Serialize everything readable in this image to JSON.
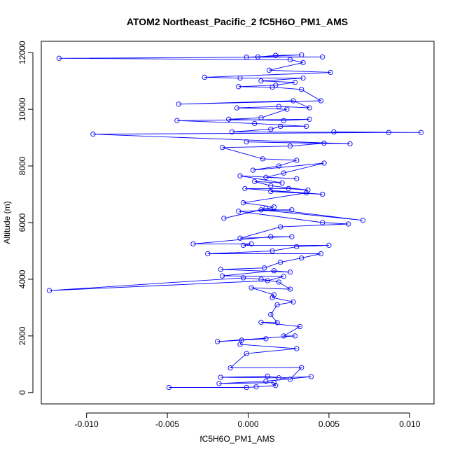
{
  "chart_data": {
    "type": "line",
    "title": "ATOM2 Northeast_Pacific_2 fC5H6O_PM1_AMS",
    "xlabel": "fC5H6O_PM1_AMS",
    "ylabel": "Altitude (m)",
    "xlim": [
      -0.0128,
      0.0115
    ],
    "ylim": [
      -400,
      12400
    ],
    "xticks": [
      -0.01,
      -0.005,
      0.0,
      0.005,
      0.01
    ],
    "xtick_labels": [
      "-0.010",
      "-0.005",
      "0.000",
      "0.005",
      "0.010"
    ],
    "yticks": [
      0,
      2000,
      4000,
      6000,
      8000,
      10000,
      12000
    ],
    "ytick_labels": [
      "0",
      "2000",
      "4000",
      "6000",
      "8000",
      "10000",
      "12000"
    ],
    "grid": false,
    "marker": "open-circle",
    "series_color": "#0000ff",
    "series": [
      {
        "points": [
          [
            -0.0049,
            180
          ],
          [
            -0.0001,
            180
          ],
          [
            0.0005,
            200
          ],
          [
            0.0017,
            250
          ],
          [
            0.0016,
            350
          ],
          [
            -0.0018,
            320
          ],
          [
            0.0011,
            400
          ],
          [
            0.0039,
            560
          ],
          [
            0.0019,
            520
          ],
          [
            -0.0017,
            540
          ],
          [
            0.0012,
            580
          ],
          [
            0.0026,
            470
          ],
          [
            0.0033,
            880
          ],
          [
            -0.0011,
            870
          ],
          [
            -0.0001,
            1380
          ],
          [
            0.003,
            1550
          ],
          [
            -0.0005,
            1700
          ],
          [
            -0.0004,
            1850
          ],
          [
            0.0011,
            1900
          ],
          [
            -0.0019,
            1800
          ],
          [
            0.0029,
            2000
          ],
          [
            0.0022,
            2000
          ],
          [
            0.0032,
            2330
          ],
          [
            0.0008,
            2480
          ],
          [
            0.0018,
            2470
          ],
          [
            0.0014,
            2750
          ],
          [
            0.0018,
            3100
          ],
          [
            0.0028,
            3200
          ],
          [
            0.0015,
            3350
          ],
          [
            0.0016,
            3450
          ],
          [
            0.0002,
            3700
          ],
          [
            0.0026,
            3650
          ],
          [
            0.0019,
            3900
          ],
          [
            0.0008,
            4000
          ],
          [
            -0.0003,
            4050
          ],
          [
            -0.0123,
            3600
          ],
          [
            0.0012,
            3950
          ],
          [
            0.0022,
            4100
          ],
          [
            -0.0016,
            4120
          ],
          [
            0.0016,
            4300
          ],
          [
            0.0026,
            4250
          ],
          [
            -0.0017,
            4350
          ],
          [
            0.001,
            4400
          ],
          [
            0.002,
            4600
          ],
          [
            0.0033,
            4750
          ],
          [
            0.0045,
            4900
          ],
          [
            -0.0025,
            4900
          ],
          [
            0.0015,
            5000
          ],
          [
            0.003,
            5150
          ],
          [
            0.005,
            5200
          ],
          [
            -0.0003,
            5200
          ],
          [
            0.0002,
            5250
          ],
          [
            -0.0034,
            5250
          ],
          [
            0.0014,
            5500
          ],
          [
            0.0027,
            5500
          ],
          [
            -0.0005,
            5450
          ],
          [
            0.002,
            5850
          ],
          [
            0.0062,
            5950
          ],
          [
            0.0046,
            6000
          ],
          [
            -0.0006,
            6400
          ],
          [
            0.0027,
            6450
          ],
          [
            0.0008,
            6450
          ],
          [
            0.0071,
            6080
          ],
          [
            0.0011,
            6500
          ],
          [
            -0.0015,
            6150
          ],
          [
            0.0016,
            6550
          ],
          [
            -0.0003,
            6700
          ],
          [
            0.0036,
            7050
          ],
          [
            0.0014,
            7100
          ],
          [
            0.0046,
            7000
          ],
          [
            -0.0002,
            7200
          ],
          [
            0.0025,
            7200
          ],
          [
            0.0037,
            7150
          ],
          [
            0.0014,
            7300
          ],
          [
            0.0004,
            7450
          ],
          [
            0.0021,
            7400
          ],
          [
            -0.0005,
            7650
          ],
          [
            0.003,
            7550
          ],
          [
            0.0011,
            7600
          ],
          [
            0.0022,
            7750
          ],
          [
            0.0047,
            8100
          ],
          [
            0.0003,
            7850
          ],
          [
            0.0019,
            8000
          ],
          [
            0.003,
            8200
          ],
          [
            0.0009,
            8250
          ],
          [
            -0.0016,
            8650
          ],
          [
            0.0026,
            8700
          ],
          [
            0.0047,
            8800
          ],
          [
            -0.0001,
            8850
          ],
          [
            0.0063,
            8780
          ],
          [
            -0.0096,
            9120
          ],
          [
            0.0087,
            9180
          ],
          [
            0.0053,
            9200
          ],
          [
            0.0107,
            9180
          ],
          [
            -0.001,
            9200
          ],
          [
            0.0014,
            9300
          ],
          [
            0.002,
            9400
          ],
          [
            0.0036,
            9400
          ],
          [
            0.0004,
            9500
          ],
          [
            -0.0044,
            9600
          ],
          [
            0.0038,
            9650
          ],
          [
            0.0022,
            9600
          ],
          [
            -0.0012,
            9650
          ],
          [
            0.0008,
            9700
          ],
          [
            0.0024,
            10000
          ],
          [
            -0.0007,
            10050
          ],
          [
            0.0019,
            10100
          ],
          [
            0.0038,
            10050
          ],
          [
            0.0028,
            10300
          ],
          [
            -0.0043,
            10180
          ],
          [
            0.0045,
            10300
          ],
          [
            0.0033,
            10700
          ],
          [
            0.0015,
            10780
          ],
          [
            -0.0006,
            10800
          ],
          [
            0.0017,
            10850
          ],
          [
            0.0029,
            10950
          ],
          [
            0.0008,
            11000
          ],
          [
            0.0034,
            11100
          ],
          [
            -0.0005,
            11100
          ],
          [
            -0.0027,
            11130
          ],
          [
            0.0051,
            11300
          ],
          [
            0.0013,
            11380
          ],
          [
            0.0034,
            11650
          ],
          [
            0.0026,
            11750
          ],
          [
            -0.0117,
            11800
          ],
          [
            0.0046,
            11850
          ],
          [
            0.0006,
            11850
          ],
          [
            0.0017,
            11900
          ],
          [
            0.0033,
            11920
          ],
          [
            -0.0001,
            11840
          ]
        ]
      }
    ]
  }
}
